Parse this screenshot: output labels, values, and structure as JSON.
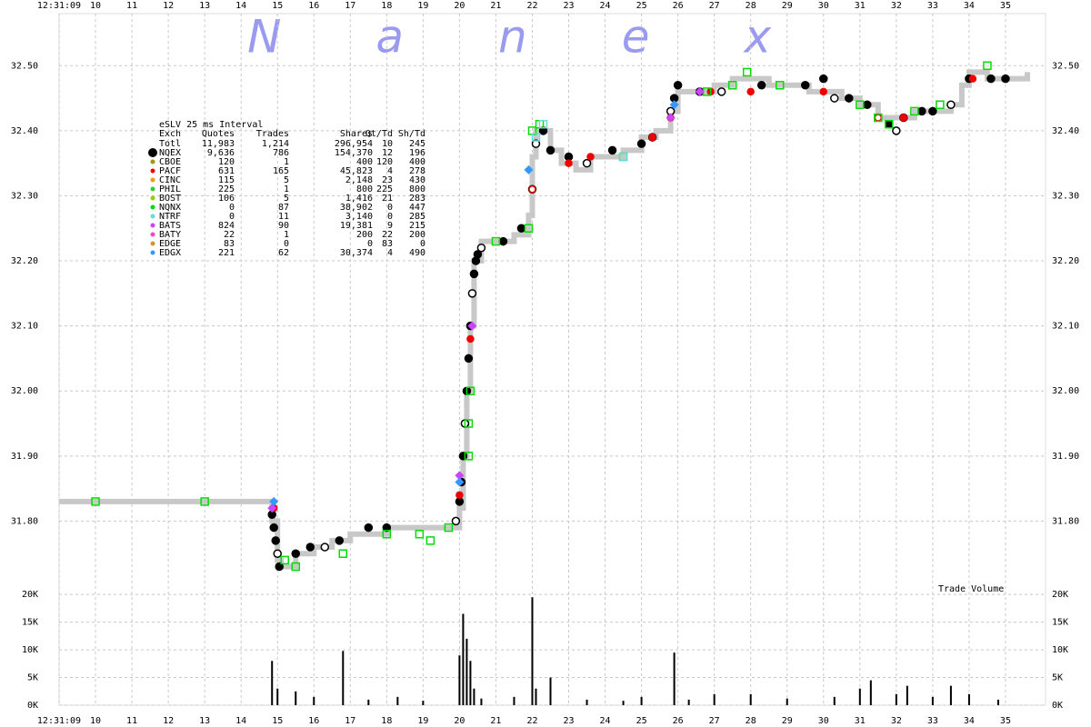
{
  "chart_data": [
    {
      "type": "line",
      "title": "Nanex",
      "xlim": [
        9,
        36.1
      ],
      "xticks": [
        {
          "value": 9,
          "label": "12:31:09"
        },
        10,
        11,
        12,
        13,
        14,
        15,
        16,
        17,
        18,
        19,
        20,
        21,
        22,
        23,
        24,
        25,
        26,
        27,
        28,
        29,
        30,
        31,
        32,
        33,
        34,
        35
      ],
      "ylim": [
        31.7,
        32.58
      ],
      "yticks": [
        {
          "value": 31.8,
          "label": "31.80"
        },
        {
          "value": 31.9,
          "label": "31.90"
        },
        {
          "value": 32.0,
          "label": "32.00"
        },
        {
          "value": 32.1,
          "label": "32.10"
        },
        {
          "value": 32.2,
          "label": "32.20"
        },
        {
          "value": 32.3,
          "label": "32.30"
        },
        {
          "value": 32.4,
          "label": "32.40"
        },
        {
          "value": 32.5,
          "label": "32.50"
        }
      ],
      "grid": true,
      "series": [
        {
          "color": "#c8c8c8",
          "marker": "step",
          "x": [
            9.0,
            14.8,
            14.85,
            15.0,
            15.1,
            15.5,
            16.0,
            16.5,
            17.0,
            17.5,
            18.0,
            19.0,
            19.7,
            20.0,
            20.1,
            20.2,
            20.3,
            20.4,
            20.6,
            21.0,
            21.5,
            21.9,
            22.0,
            22.1,
            22.3,
            22.5,
            22.8,
            23.2,
            23.6,
            24.0,
            24.5,
            25.0,
            25.4,
            25.8,
            26.0,
            26.5,
            27.0,
            27.5,
            28.0,
            28.5,
            29.0,
            29.6,
            30.0,
            30.5,
            31.0,
            31.5,
            32.0,
            32.5,
            33.0,
            33.5,
            33.8,
            34.0,
            34.5,
            35.0,
            35.6
          ],
          "values": [
            31.83,
            31.83,
            31.8,
            31.74,
            31.73,
            31.75,
            31.76,
            31.77,
            31.78,
            31.78,
            31.79,
            31.79,
            31.79,
            31.82,
            31.9,
            32.0,
            32.1,
            32.2,
            32.23,
            32.23,
            32.24,
            32.27,
            32.36,
            32.4,
            32.4,
            32.37,
            32.35,
            32.34,
            32.36,
            32.36,
            32.37,
            32.39,
            32.4,
            32.43,
            32.46,
            32.46,
            32.47,
            32.48,
            32.48,
            32.47,
            32.47,
            32.46,
            32.46,
            32.45,
            32.44,
            32.42,
            32.42,
            32.43,
            32.43,
            32.44,
            32.47,
            32.49,
            32.48,
            32.48,
            32.49
          ]
        },
        {
          "color": "#000000",
          "marker": "circle",
          "x": [
            14.85,
            14.9,
            14.95,
            15.0,
            15.05,
            15.5,
            15.9,
            16.3,
            16.7,
            17.5,
            18.0,
            19.9,
            20.0,
            20.05,
            20.1,
            20.15,
            20.2,
            20.25,
            20.3,
            20.35,
            20.4,
            20.45,
            20.5,
            20.6,
            21.2,
            21.7,
            22.0,
            22.1,
            22.3,
            22.5,
            23.0,
            23.5,
            24.2,
            25.0,
            25.3,
            25.8,
            25.9,
            26.0,
            26.6,
            27.2,
            28.3,
            29.5,
            30.0,
            30.3,
            30.7,
            31.2,
            31.8,
            32.0,
            32.2,
            32.7,
            33.0,
            33.5,
            34.0,
            34.6,
            35.0
          ],
          "values": [
            31.81,
            31.79,
            31.77,
            31.75,
            31.73,
            31.75,
            31.76,
            31.76,
            31.77,
            31.79,
            31.79,
            31.8,
            31.83,
            31.86,
            31.9,
            31.95,
            32.0,
            32.05,
            32.1,
            32.15,
            32.18,
            32.2,
            32.21,
            32.22,
            32.23,
            32.25,
            32.31,
            32.38,
            32.4,
            32.37,
            32.36,
            32.35,
            32.37,
            32.38,
            32.39,
            32.43,
            32.45,
            32.47,
            32.46,
            32.46,
            32.47,
            32.47,
            32.48,
            32.45,
            32.45,
            32.44,
            32.41,
            32.4,
            32.42,
            32.43,
            32.43,
            32.44,
            32.48,
            32.48,
            32.48
          ]
        },
        {
          "color": "#ee0000",
          "marker": "circle",
          "x": [
            14.9,
            20.0,
            20.3,
            22.0,
            23.0,
            23.6,
            25.3,
            25.8,
            26.9,
            28.0,
            30.0,
            31.5,
            32.2,
            34.1
          ],
          "values": [
            31.82,
            31.84,
            32.08,
            32.31,
            32.35,
            32.36,
            32.39,
            32.42,
            32.46,
            32.46,
            32.46,
            32.42,
            32.42,
            32.48
          ]
        },
        {
          "color": "#00dd00",
          "marker": "square",
          "x": [
            10,
            13,
            15.2,
            15.5,
            16.8,
            18.0,
            18.9,
            19.2,
            19.7,
            20.25,
            20.3,
            20.25,
            21.0,
            21.9,
            22.0,
            22.2,
            24.5,
            26.8,
            27.5,
            27.9,
            28.8,
            31.0,
            31.5,
            31.8,
            32.5,
            33.2,
            34.5
          ],
          "values": [
            31.83,
            31.83,
            31.74,
            31.73,
            31.75,
            31.78,
            31.78,
            31.77,
            31.79,
            31.9,
            32.0,
            31.95,
            32.23,
            32.25,
            32.4,
            32.41,
            32.36,
            32.46,
            32.47,
            32.49,
            32.47,
            32.44,
            32.42,
            32.41,
            32.43,
            32.44,
            32.5
          ]
        },
        {
          "color": "#cc44ff",
          "marker": "diamond",
          "x": [
            14.85,
            20.0,
            20.35,
            25.8,
            26.6
          ],
          "values": [
            31.82,
            31.87,
            32.1,
            32.42,
            32.46
          ]
        },
        {
          "color": "#3399ff",
          "marker": "diamond",
          "x": [
            14.9,
            20.0,
            21.9,
            25.9
          ],
          "values": [
            31.83,
            31.86,
            32.34,
            32.44
          ]
        },
        {
          "color": "#66dddd",
          "marker": "square",
          "x": [
            22.1,
            22.3,
            24.5
          ],
          "values": [
            32.39,
            32.41,
            32.36
          ]
        }
      ]
    },
    {
      "type": "bar",
      "title": "Trade Volume",
      "color": "#000000",
      "xlim": [
        9,
        36.1
      ],
      "ylim": [
        0,
        21500
      ],
      "yticks": [
        {
          "value": 0,
          "label": "0K"
        },
        {
          "value": 5000,
          "label": "5K"
        },
        {
          "value": 10000,
          "label": "10K"
        },
        {
          "value": 15000,
          "label": "15K"
        },
        {
          "value": 20000,
          "label": "20K"
        }
      ],
      "grid": true,
      "x": [
        14.85,
        15.0,
        15.5,
        16.0,
        16.8,
        17.5,
        18.3,
        19.0,
        20.0,
        20.1,
        20.2,
        20.3,
        20.4,
        20.6,
        21.5,
        22.0,
        22.1,
        22.5,
        23.5,
        24.5,
        25.0,
        25.9,
        26.3,
        27.0,
        28.0,
        29.0,
        30.3,
        31.0,
        31.3,
        32.0,
        32.3,
        33.0,
        33.5,
        34.0,
        34.8
      ],
      "values": [
        8000,
        3000,
        2500,
        1500,
        9800,
        1000,
        1500,
        800,
        9000,
        16500,
        12000,
        8000,
        3000,
        1200,
        1500,
        19500,
        3000,
        5000,
        1000,
        800,
        1500,
        9500,
        1000,
        2000,
        2000,
        1200,
        1500,
        3000,
        4500,
        2000,
        3500,
        1500,
        3500,
        2000,
        1000
      ]
    }
  ],
  "legend_table": {
    "title": "eSLV 25 ms Interval",
    "columns": [
      "Exch",
      "Quotes",
      "Trades",
      "Shares",
      "Qt/Td",
      "Sh/Td"
    ],
    "colors": [
      null,
      "#000000",
      "#999900",
      "#ee0000",
      "#ff9900",
      "#33cc33",
      "#99cc00",
      "#00dd00",
      "#66dddd",
      "#cc44ff",
      "#ff44cc",
      "#cc9933",
      "#3399ff"
    ],
    "rows": [
      [
        "Totl",
        "11,983",
        "1,214",
        "296,954",
        "10",
        "245"
      ],
      [
        "NQEX",
        "9,636",
        "786",
        "154,370",
        "12",
        "196"
      ],
      [
        "CBOE",
        "120",
        "1",
        "400",
        "120",
        "400"
      ],
      [
        "PACF",
        "631",
        "165",
        "45,823",
        "4",
        "278"
      ],
      [
        "CINC",
        "115",
        "5",
        "2,148",
        "23",
        "430"
      ],
      [
        "PHIL",
        "225",
        "1",
        "800",
        "225",
        "800"
      ],
      [
        "BOST",
        "106",
        "5",
        "1,416",
        "21",
        "283"
      ],
      [
        "NQNX",
        "0",
        "87",
        "38,902",
        "0",
        "447"
      ],
      [
        "NTRF",
        "0",
        "11",
        "3,140",
        "0",
        "285"
      ],
      [
        "BATS",
        "824",
        "90",
        "19,381",
        "9",
        "215"
      ],
      [
        "BATY",
        "22",
        "1",
        "200",
        "22",
        "200"
      ],
      [
        "EDGE",
        "83",
        "0",
        "0",
        "83",
        "0"
      ],
      [
        "EDGX",
        "221",
        "62",
        "30,374",
        "4",
        "490"
      ]
    ]
  }
}
